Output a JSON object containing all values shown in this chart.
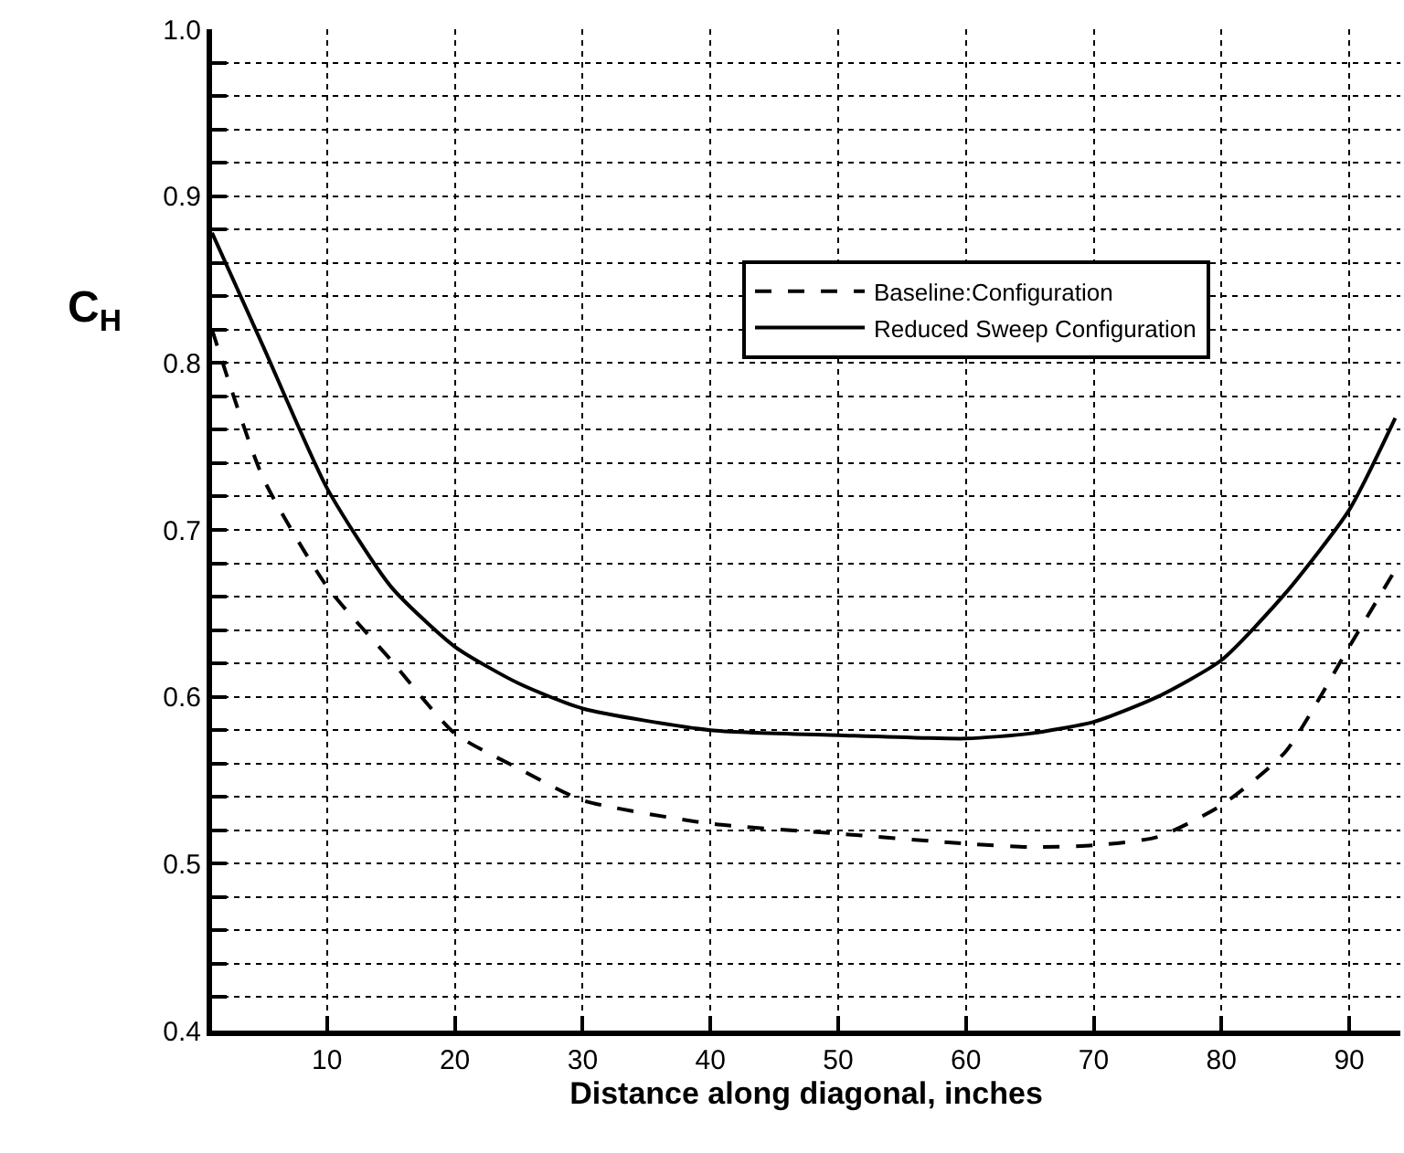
{
  "chart_data": {
    "type": "line",
    "xlabel": "Distance along diagonal, inches",
    "ylabel": "C$_{H}$",
    "xlim": [
      1,
      94
    ],
    "xticks": [
      10,
      20,
      30,
      40,
      50,
      60,
      70,
      80,
      90
    ],
    "ylim": [
      0.4,
      1.0
    ],
    "yticks": [
      0.4,
      {
        "value": 0.42,
        "label": null
      },
      {
        "value": 0.44,
        "label": null
      },
      {
        "value": 0.46,
        "label": null
      },
      {
        "value": 0.48,
        "label": null
      },
      0.5,
      {
        "value": 0.52,
        "label": null
      },
      {
        "value": 0.54,
        "label": null
      },
      {
        "value": 0.56,
        "label": null
      },
      {
        "value": 0.58,
        "label": null
      },
      0.6,
      {
        "value": 0.62,
        "label": null
      },
      {
        "value": 0.64,
        "label": null
      },
      {
        "value": 0.66,
        "label": null
      },
      {
        "value": 0.68,
        "label": null
      },
      0.7,
      {
        "value": 0.72,
        "label": null
      },
      {
        "value": 0.74,
        "label": null
      },
      {
        "value": 0.76,
        "label": null
      },
      {
        "value": 0.78,
        "label": null
      },
      0.8,
      {
        "value": 0.82,
        "label": null
      },
      {
        "value": 0.84,
        "label": null
      },
      {
        "value": 0.86,
        "label": null
      },
      {
        "value": 0.88,
        "label": null
      },
      0.9,
      {
        "value": 0.92,
        "label": null
      },
      {
        "value": 0.94,
        "label": null
      },
      {
        "value": 0.96,
        "label": null
      },
      {
        "value": 0.98,
        "label": null
      },
      {
        "value": 1.0,
        "label": "1.0"
      }
    ],
    "grid": true,
    "legend": "right",
    "marker": "none",
    "series": [
      {
        "name": "Baseline:Configuration",
        "color": "#000000",
        "line_style": "dashed",
        "x": [
          1,
          5,
          10,
          15,
          20,
          25,
          30,
          40,
          50,
          60,
          65,
          70,
          75,
          80,
          85,
          90,
          93.6
        ],
        "values": [
          0.82,
          0.731,
          0.666,
          0.622,
          0.578,
          0.557,
          0.538,
          0.524,
          0.518,
          0.512,
          0.51,
          0.511,
          0.516,
          0.535,
          0.567,
          0.63,
          0.676
        ]
      },
      {
        "name": "Reduced Sweep Configuration",
        "color": "#000000",
        "line_style": "solid",
        "x": [
          1,
          5,
          10,
          15,
          20,
          25,
          30,
          40,
          50,
          60,
          65,
          70,
          75,
          80,
          85,
          90,
          93.6
        ],
        "values": [
          0.878,
          0.81,
          0.725,
          0.666,
          0.63,
          0.608,
          0.593,
          0.58,
          0.577,
          0.575,
          0.578,
          0.585,
          0.6,
          0.622,
          0.662,
          0.712,
          0.767
        ]
      }
    ]
  }
}
